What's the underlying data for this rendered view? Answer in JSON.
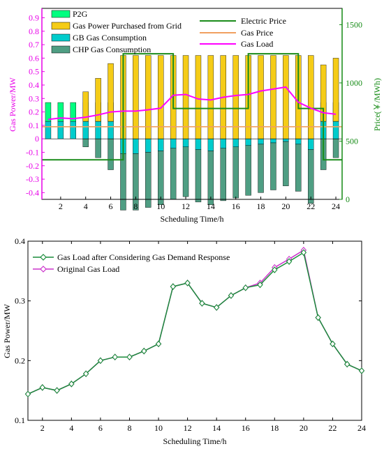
{
  "chart_data": [
    {
      "type": "bar",
      "ylabel": "Gas Power/MW",
      "y2label": "Price(￥/MWh)",
      "xlabel": "Scheduling Time/h",
      "x": [
        1,
        2,
        3,
        4,
        5,
        6,
        7,
        8,
        9,
        10,
        11,
        12,
        13,
        14,
        15,
        16,
        17,
        18,
        19,
        20,
        21,
        22,
        23,
        24
      ],
      "xticks": [
        2,
        4,
        6,
        8,
        10,
        12,
        14,
        16,
        18,
        20,
        22,
        24
      ],
      "yticks": [
        -0.4,
        -0.3,
        -0.2,
        -0.1,
        0,
        0.1,
        0.2,
        0.3,
        0.4,
        0.5,
        0.6,
        0.7,
        0.8,
        0.9
      ],
      "yticklabels": [
        "-0.4",
        "-0.3",
        "-0.2",
        "-0.1",
        "0",
        "0.1",
        "0.2",
        "0.3",
        "0.4",
        "0.5",
        "0.6",
        "0.7",
        "0.8",
        "0.9"
      ],
      "y2ticks": [
        0,
        500,
        1000,
        1500
      ],
      "y2ticklabels": [
        "0",
        "500",
        "1000",
        "1500"
      ],
      "ylim": [
        -0.45,
        0.97
      ],
      "y2lim": [
        0,
        1640
      ],
      "colors": {
        "p2g": "#00ff80",
        "grid": "#f5cc17",
        "gb": "#00cccc",
        "chp": "#4f9e83",
        "electric_price": "#1a8c1a",
        "gas_price": "#f0a060",
        "gas_load": "#ff00ff",
        "left_axis": "#e800e8",
        "right_axis": "#138a13"
      },
      "legend": {
        "p2g": "P2G",
        "grid": "Gas Power Purchased from Grid",
        "gb": "GB Gas Consumption",
        "chp": "CHP Gas Consumption",
        "electric_price": "Electric Price",
        "gas_price": "Gas Price",
        "gas_load": "Gas Load"
      },
      "series": {
        "p2g": [
          0.14,
          0.14,
          0.14,
          0.14,
          0.14,
          0.14,
          0,
          0,
          0,
          0,
          0,
          0,
          0,
          0,
          0,
          0,
          0,
          0,
          0,
          0,
          0,
          0,
          0.14,
          0.14
        ],
        "grid": [
          0,
          0,
          0,
          0.22,
          0.32,
          0.43,
          0.62,
          0.62,
          0.62,
          0.62,
          0.62,
          0.62,
          0.62,
          0.62,
          0.62,
          0.62,
          0.62,
          0.62,
          0.62,
          0.62,
          0.62,
          0.62,
          0.42,
          0.47
        ],
        "gb": [
          0.13,
          0.13,
          0.13,
          0.13,
          0.13,
          0.13,
          -0.11,
          -0.11,
          -0.1,
          -0.09,
          -0.07,
          -0.06,
          -0.08,
          -0.09,
          -0.07,
          -0.06,
          -0.05,
          -0.04,
          -0.03,
          -0.02,
          -0.04,
          -0.08,
          0.13,
          0.13
        ],
        "chp": [
          0,
          0,
          0,
          -0.06,
          -0.14,
          -0.23,
          -0.42,
          -0.42,
          -0.41,
          -0.4,
          -0.38,
          -0.37,
          -0.39,
          -0.4,
          -0.39,
          -0.38,
          -0.37,
          -0.36,
          -0.35,
          -0.33,
          -0.35,
          -0.4,
          -0.23,
          -0.14
        ],
        "gas_load": [
          0.144,
          0.155,
          0.15,
          0.161,
          0.178,
          0.2,
          0.206,
          0.206,
          0.216,
          0.228,
          0.324,
          0.33,
          0.296,
          0.289,
          0.309,
          0.322,
          0.33,
          0.356,
          0.37,
          0.385,
          0.272,
          0.228,
          0.194,
          0.183
        ],
        "electric_price_steps": [
          {
            "from": 0.5,
            "to": 6,
            "value": 340
          },
          {
            "from": 6,
            "to": 7,
            "value": 340
          },
          {
            "from": 7,
            "to": 10,
            "value": 1250
          },
          {
            "from": 10,
            "to": 11,
            "value": 1250
          },
          {
            "from": 11,
            "to": 16,
            "value": 780
          },
          {
            "from": 16,
            "to": 17,
            "value": 780
          },
          {
            "from": 17,
            "to": 20,
            "value": 1250
          },
          {
            "from": 20,
            "to": 21,
            "value": 1250
          },
          {
            "from": 21,
            "to": 22,
            "value": 780
          },
          {
            "from": 22,
            "to": 23,
            "value": 780
          },
          {
            "from": 23,
            "to": 24.5,
            "value": 340
          }
        ],
        "gas_price": 0.09
      }
    },
    {
      "type": "line",
      "ylabel": "Gas Power/MW",
      "xlabel": "Scheduling Time/h",
      "x": [
        1,
        2,
        3,
        4,
        5,
        6,
        7,
        8,
        9,
        10,
        11,
        12,
        13,
        14,
        15,
        16,
        17,
        18,
        19,
        20,
        21,
        22,
        23,
        24
      ],
      "xticks": [
        2,
        4,
        6,
        8,
        10,
        12,
        14,
        16,
        18,
        20,
        22,
        24
      ],
      "yticks": [
        0.1,
        0.2,
        0.3,
        0.4
      ],
      "yticklabels": [
        "0.1",
        "0.2",
        "0.3",
        "0.4"
      ],
      "ylim": [
        0.1,
        0.4
      ],
      "series": [
        {
          "name": "Gas Load after Considering Gas Demand Response",
          "color": "#1a8c3a",
          "values": [
            0.144,
            0.155,
            0.15,
            0.161,
            0.178,
            0.2,
            0.206,
            0.206,
            0.216,
            0.228,
            0.324,
            0.33,
            0.296,
            0.289,
            0.309,
            0.322,
            0.327,
            0.352,
            0.366,
            0.381,
            0.272,
            0.228,
            0.194,
            0.183
          ]
        },
        {
          "name": "Original Gas Load",
          "color": "#cc33cc",
          "values": [
            0.144,
            0.155,
            0.15,
            0.161,
            0.178,
            0.2,
            0.206,
            0.206,
            0.216,
            0.228,
            0.324,
            0.33,
            0.296,
            0.289,
            0.309,
            0.322,
            0.33,
            0.356,
            0.37,
            0.385,
            0.272,
            0.228,
            0.194,
            0.183
          ]
        }
      ]
    }
  ]
}
